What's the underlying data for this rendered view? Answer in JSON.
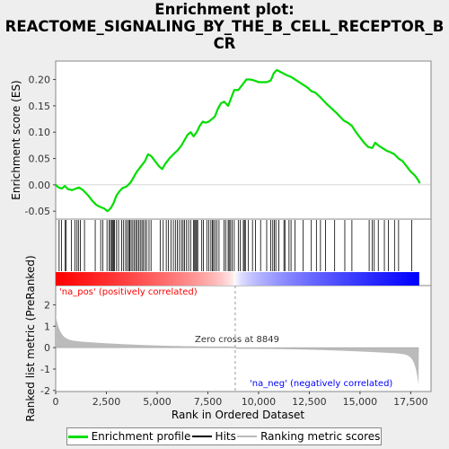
{
  "title_line1": "Enrichment plot:",
  "title_line2": "REACTOME_SIGNALING_BY_THE_B_CELL_RECEPTOR_B",
  "title_line3": "CR",
  "legend": {
    "enrichment": "Enrichment profile",
    "hits": "Hits",
    "ranking": "Ranking metric scores"
  },
  "colors": {
    "enrichment": "#00dd00",
    "hits": "#000000",
    "ranking": "#bbbbbb",
    "positive": "#ff0000",
    "negative": "#0000ff"
  },
  "chart_data": {
    "type": "line",
    "xlabel": "Rank in Ordered Dataset",
    "ylabel_top": "Enrichment score (ES)",
    "ylabel_bottom": "Ranked list metric (PreRanked)",
    "xlim": [
      0,
      18500
    ],
    "xticks": [
      0,
      2500,
      5000,
      7500,
      10000,
      12500,
      15000,
      17500
    ],
    "xtick_labels": [
      "0",
      "2,500",
      "5,000",
      "7,500",
      "10,000",
      "12,500",
      "15,000",
      "17,500"
    ],
    "es_ylim": [
      -0.065,
      0.235
    ],
    "es_yticks": [
      -0.05,
      0.0,
      0.05,
      0.1,
      0.15,
      0.2
    ],
    "es_ytick_labels": [
      "-0.05",
      "0.00",
      "0.05",
      "0.10",
      "0.15",
      "0.20"
    ],
    "metric_ylim": [
      -2.05,
      2.9
    ],
    "metric_yticks": [
      -2,
      -1,
      0,
      1,
      2
    ],
    "metric_ytick_labels": [
      "-2",
      "-1",
      "0",
      "1",
      "2"
    ],
    "zero_cross": 8849,
    "zero_cross_label": "Zero cross at 8849",
    "pos_label": "'na_pos' (positively correlated)",
    "neg_label": "'na_neg' (negatively correlated)",
    "n_genes": 17900,
    "enrichment_profile": [
      [
        0,
        0.0
      ],
      [
        150,
        -0.005
      ],
      [
        300,
        -0.007
      ],
      [
        450,
        -0.002
      ],
      [
        600,
        -0.008
      ],
      [
        800,
        -0.01
      ],
      [
        1000,
        -0.007
      ],
      [
        1150,
        -0.005
      ],
      [
        1350,
        -0.01
      ],
      [
        1600,
        -0.02
      ],
      [
        1800,
        -0.03
      ],
      [
        2000,
        -0.038
      ],
      [
        2200,
        -0.042
      ],
      [
        2400,
        -0.045
      ],
      [
        2550,
        -0.05
      ],
      [
        2700,
        -0.045
      ],
      [
        2850,
        -0.035
      ],
      [
        3000,
        -0.02
      ],
      [
        3150,
        -0.012
      ],
      [
        3300,
        -0.006
      ],
      [
        3500,
        -0.003
      ],
      [
        3700,
        0.005
      ],
      [
        3850,
        0.015
      ],
      [
        4000,
        0.025
      ],
      [
        4200,
        0.035
      ],
      [
        4400,
        0.045
      ],
      [
        4550,
        0.058
      ],
      [
        4700,
        0.055
      ],
      [
        4900,
        0.045
      ],
      [
        5100,
        0.035
      ],
      [
        5250,
        0.03
      ],
      [
        5400,
        0.04
      ],
      [
        5600,
        0.05
      ],
      [
        5800,
        0.058
      ],
      [
        6000,
        0.065
      ],
      [
        6200,
        0.075
      ],
      [
        6350,
        0.085
      ],
      [
        6500,
        0.095
      ],
      [
        6650,
        0.1
      ],
      [
        6800,
        0.092
      ],
      [
        6950,
        0.1
      ],
      [
        7100,
        0.112
      ],
      [
        7250,
        0.12
      ],
      [
        7400,
        0.118
      ],
      [
        7550,
        0.12
      ],
      [
        7700,
        0.125
      ],
      [
        7850,
        0.13
      ],
      [
        8000,
        0.145
      ],
      [
        8150,
        0.155
      ],
      [
        8300,
        0.158
      ],
      [
        8500,
        0.15
      ],
      [
        8650,
        0.165
      ],
      [
        8800,
        0.18
      ],
      [
        9000,
        0.18
      ],
      [
        9200,
        0.19
      ],
      [
        9400,
        0.2
      ],
      [
        9600,
        0.2
      ],
      [
        9800,
        0.198
      ],
      [
        10000,
        0.195
      ],
      [
        10200,
        0.195
      ],
      [
        10400,
        0.195
      ],
      [
        10600,
        0.198
      ],
      [
        10750,
        0.212
      ],
      [
        10900,
        0.218
      ],
      [
        11050,
        0.215
      ],
      [
        11200,
        0.212
      ],
      [
        11400,
        0.208
      ],
      [
        11600,
        0.205
      ],
      [
        11800,
        0.2
      ],
      [
        12000,
        0.195
      ],
      [
        12200,
        0.19
      ],
      [
        12400,
        0.185
      ],
      [
        12600,
        0.178
      ],
      [
        12800,
        0.175
      ],
      [
        13000,
        0.168
      ],
      [
        13200,
        0.16
      ],
      [
        13400,
        0.152
      ],
      [
        13600,
        0.145
      ],
      [
        13800,
        0.138
      ],
      [
        14000,
        0.13
      ],
      [
        14200,
        0.122
      ],
      [
        14400,
        0.118
      ],
      [
        14600,
        0.112
      ],
      [
        14800,
        0.1
      ],
      [
        15000,
        0.09
      ],
      [
        15200,
        0.08
      ],
      [
        15400,
        0.072
      ],
      [
        15600,
        0.07
      ],
      [
        15750,
        0.08
      ],
      [
        15900,
        0.075
      ],
      [
        16100,
        0.07
      ],
      [
        16300,
        0.065
      ],
      [
        16500,
        0.062
      ],
      [
        16700,
        0.058
      ],
      [
        16900,
        0.05
      ],
      [
        17100,
        0.045
      ],
      [
        17300,
        0.035
      ],
      [
        17500,
        0.025
      ],
      [
        17700,
        0.018
      ],
      [
        17850,
        0.01
      ],
      [
        17950,
        0.003
      ]
    ],
    "hit_ranks": [
      170,
      290,
      470,
      520,
      780,
      950,
      1050,
      1120,
      1220,
      1420,
      1950,
      2220,
      2320,
      2530,
      2640,
      2700,
      2760,
      2800,
      2850,
      2900,
      3000,
      3100,
      3250,
      3350,
      3450,
      3530,
      3600,
      3650,
      3720,
      3800,
      3880,
      3950,
      4020,
      4100,
      4170,
      4250,
      4320,
      4400,
      4480,
      4600,
      4700,
      5150,
      5300,
      5450,
      5560,
      5680,
      5800,
      5900,
      6000,
      6100,
      6200,
      6280,
      6350,
      6450,
      6550,
      6650,
      6800,
      6850,
      6900,
      6950,
      7000,
      7200,
      7280,
      7450,
      7550,
      7650,
      7720,
      7780,
      7850,
      7950,
      8050,
      8300,
      8380,
      8500,
      8550,
      8620,
      8700,
      8800,
      9000,
      9100,
      9250,
      9300,
      9350,
      9500,
      9700,
      9850,
      10100,
      10400,
      10600,
      10700,
      10780,
      10850,
      11000,
      11250,
      11300,
      11500,
      11600,
      11800,
      12200,
      12600,
      12850,
      13050,
      13300,
      13750,
      14250,
      14600,
      15450,
      15600,
      15700,
      15900,
      16200,
      16400,
      16700,
      16900,
      17550
    ]
  }
}
